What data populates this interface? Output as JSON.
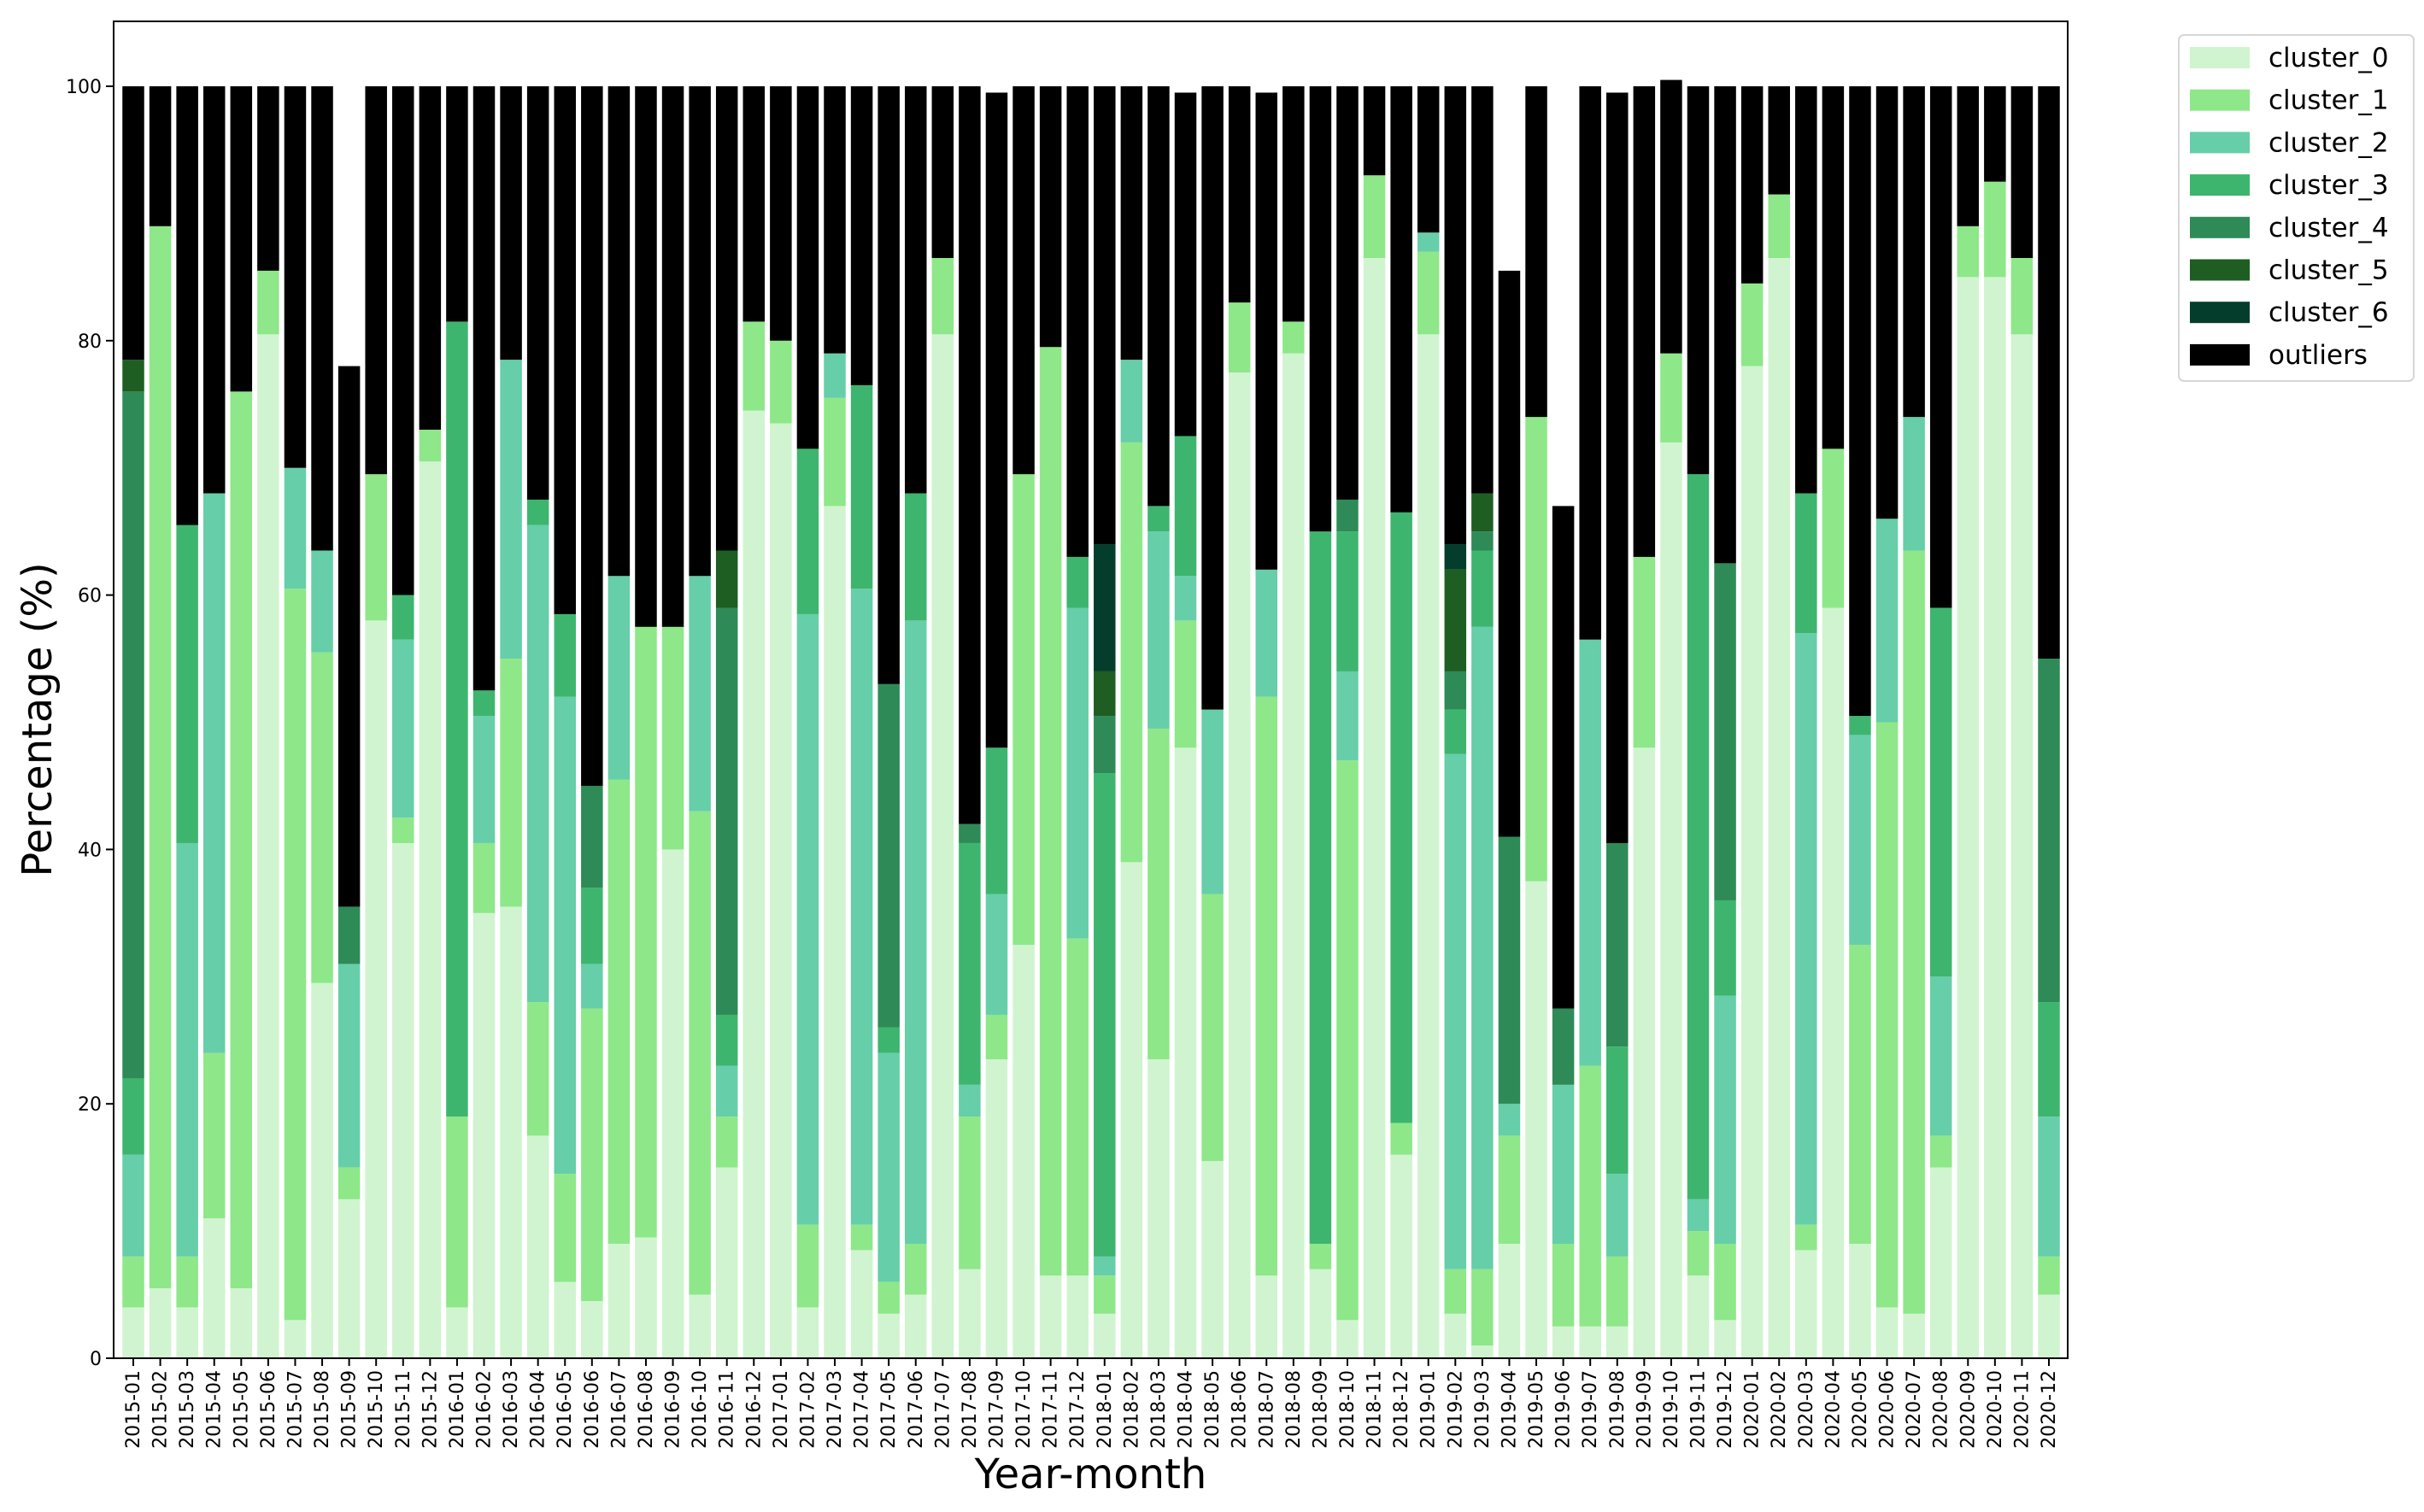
{
  "chart_data": {
    "type": "bar",
    "stacked": true,
    "title": "",
    "xlabel": "Year-month",
    "ylabel": "Percentage (%)",
    "ylim": [
      0,
      100
    ],
    "yticks": [
      0,
      20,
      40,
      60,
      80,
      100
    ],
    "grid": false,
    "legend_position": "outside-top-right",
    "categories": [
      "2015-01",
      "2015-02",
      "2015-03",
      "2015-04",
      "2015-05",
      "2015-06",
      "2015-07",
      "2015-08",
      "2015-09",
      "2015-10",
      "2015-11",
      "2015-12",
      "2016-01",
      "2016-02",
      "2016-03",
      "2016-04",
      "2016-05",
      "2016-06",
      "2016-07",
      "2016-08",
      "2016-09",
      "2016-10",
      "2016-11",
      "2016-12",
      "2017-01",
      "2017-02",
      "2017-03",
      "2017-04",
      "2017-05",
      "2017-06",
      "2017-07",
      "2017-08",
      "2017-09",
      "2017-10",
      "2017-11",
      "2017-12",
      "2018-01",
      "2018-02",
      "2018-03",
      "2018-04",
      "2018-05",
      "2018-06",
      "2018-07",
      "2018-08",
      "2018-09",
      "2018-10",
      "2018-11",
      "2018-12",
      "2019-01",
      "2019-02",
      "2019-03",
      "2019-04",
      "2019-05",
      "2019-06",
      "2019-07",
      "2019-08",
      "2019-09",
      "2019-10",
      "2019-11",
      "2019-12",
      "2020-01",
      "2020-02",
      "2020-03",
      "2020-04",
      "2020-05",
      "2020-06",
      "2020-07",
      "2020-08",
      "2020-09",
      "2020-10",
      "2020-11",
      "2020-12"
    ],
    "series": [
      {
        "name": "cluster_0",
        "color": "#d0f4d0",
        "values": [
          4,
          5.5,
          4,
          11,
          5.5,
          80.5,
          3,
          29.5,
          12.5,
          58,
          40.5,
          70.5,
          4,
          35,
          35.5,
          17.5,
          6,
          4.5,
          9,
          9.5,
          40,
          5,
          15,
          74.5,
          73.5,
          4,
          67,
          8.5,
          3.5,
          5,
          80.5,
          7,
          23.5,
          32.5,
          6.5,
          6.5,
          3.5,
          39,
          23.5,
          48,
          15.5,
          77.5,
          6.5,
          79,
          7,
          3,
          86.5,
          16,
          80.5,
          3.5,
          1,
          9,
          37.5,
          2.5,
          2.5,
          2.5,
          48,
          72,
          6.5,
          3,
          78,
          86.5,
          8.5,
          59,
          9,
          4,
          3.5,
          15,
          85,
          85,
          80.5,
          5
        ]
      },
      {
        "name": "cluster_1",
        "color": "#8ee88a",
        "values": [
          4,
          83.5,
          4,
          13,
          70.5,
          5,
          57.5,
          26,
          2.5,
          11.5,
          2,
          2.5,
          15,
          5.5,
          19.5,
          10.5,
          8.5,
          23,
          36.5,
          48,
          17.5,
          38,
          4,
          7,
          6.5,
          6.5,
          8.5,
          2,
          2.5,
          4,
          6,
          12,
          3.5,
          37,
          73,
          26.5,
          3,
          33,
          26,
          10,
          21,
          5.5,
          45.5,
          2.5,
          2,
          44,
          6.5,
          2.5,
          6.5,
          3.5,
          6,
          8.5,
          36.5,
          6.5,
          20.5,
          5.5,
          15,
          7,
          3.5,
          6,
          6.5,
          5,
          2,
          12.5,
          23.5,
          46,
          60,
          2.5,
          4,
          7.5,
          6,
          3
        ]
      },
      {
        "name": "cluster_2",
        "color": "#66cfaa",
        "values": [
          8,
          0,
          32.5,
          44,
          0,
          0,
          9.5,
          8,
          16,
          0,
          14,
          0,
          0,
          10,
          23.5,
          37.5,
          37.5,
          3.5,
          16,
          0,
          0,
          18.5,
          4,
          0,
          0,
          48,
          3.5,
          50,
          18,
          49,
          0,
          2.5,
          9.5,
          0,
          0,
          26,
          1.5,
          6.5,
          15.5,
          3.5,
          14.5,
          0,
          10,
          0,
          0,
          7,
          0,
          0,
          1.5,
          40.5,
          50.5,
          2.5,
          0,
          12.5,
          33.5,
          6.5,
          0,
          0,
          2.5,
          19.5,
          0,
          0,
          46.5,
          0,
          16.5,
          16,
          10.5,
          12.5,
          0,
          0,
          0,
          11
        ]
      },
      {
        "name": "cluster_3",
        "color": "#3db56f",
        "values": [
          6,
          0,
          25,
          0,
          0,
          0,
          0,
          0,
          0,
          0,
          3.5,
          0,
          62.5,
          2,
          0,
          2,
          6.5,
          6,
          0,
          0,
          0,
          0,
          4,
          0,
          0,
          13,
          0,
          16,
          2,
          10,
          0,
          19,
          11.5,
          0,
          0,
          4,
          38,
          0,
          2,
          11,
          0,
          0,
          0,
          0,
          56,
          11,
          0,
          48,
          0,
          3.5,
          6,
          0,
          0,
          0,
          0,
          10,
          0,
          0,
          57,
          7.5,
          0,
          0,
          11,
          0,
          1.5,
          0,
          0,
          29,
          0,
          0,
          0,
          9
        ]
      },
      {
        "name": "cluster_4",
        "color": "#2e8b57",
        "values": [
          54,
          0,
          0,
          0,
          0,
          0,
          0,
          0,
          4.5,
          0,
          0,
          0,
          0,
          0,
          0,
          0,
          0,
          8,
          0,
          0,
          0,
          0,
          32,
          0,
          0,
          0,
          0,
          0,
          27,
          0,
          0,
          1.5,
          0,
          0,
          0,
          0,
          4.5,
          0,
          0,
          0,
          0,
          0,
          0,
          0,
          0,
          2.5,
          0,
          0,
          0,
          3,
          1.5,
          21,
          0,
          6,
          0,
          16,
          0,
          0,
          0,
          26.5,
          0,
          0,
          0,
          0,
          0,
          0,
          0,
          0,
          0,
          0,
          0,
          27
        ]
      },
      {
        "name": "cluster_5",
        "color": "#1f5e22",
        "values": [
          2.5,
          0,
          0,
          0,
          0,
          0,
          0,
          0,
          0,
          0,
          0,
          0,
          0,
          0,
          0,
          0,
          0,
          0,
          0,
          0,
          0,
          0,
          4.5,
          0,
          0,
          0,
          0,
          0,
          0,
          0,
          0,
          0,
          0,
          0,
          0,
          0,
          3.5,
          0,
          0,
          0,
          0,
          0,
          0,
          0,
          0,
          0,
          0,
          0,
          0,
          8,
          3,
          0,
          0,
          0,
          0,
          0,
          0,
          0,
          0,
          0,
          0,
          0,
          0,
          0,
          0,
          0,
          0,
          0,
          0,
          0,
          0,
          0
        ]
      },
      {
        "name": "cluster_6",
        "color": "#043d2b",
        "values": [
          0,
          0,
          0,
          0,
          0,
          0,
          0,
          0,
          0,
          0,
          0,
          0,
          0,
          0,
          0,
          0,
          0,
          0,
          0,
          0,
          0,
          0,
          0,
          0,
          0,
          0,
          0,
          0,
          0,
          0,
          0,
          0,
          0,
          0,
          0,
          0,
          10,
          0,
          0,
          0,
          0,
          0,
          0,
          0,
          0,
          0,
          0,
          0,
          0,
          2,
          0,
          0,
          0,
          0,
          0,
          0,
          0,
          0,
          0,
          0,
          0,
          0,
          0,
          0,
          0,
          0,
          0,
          0,
          0,
          0,
          0,
          0
        ]
      },
      {
        "name": "outliers",
        "color": "#000000",
        "values": [
          21.5,
          11,
          34.5,
          32,
          24,
          14.5,
          30,
          36.5,
          42.5,
          30.5,
          40,
          27,
          18.5,
          47.5,
          21.5,
          32.5,
          41.5,
          55,
          38.5,
          42.5,
          42.5,
          38.5,
          36.5,
          18.5,
          20,
          28.5,
          21,
          23.5,
          47,
          32,
          13.5,
          58,
          51.5,
          30.5,
          20.5,
          37,
          36,
          21.5,
          33,
          27,
          49,
          17,
          37.5,
          18.5,
          35,
          32.5,
          7,
          33.5,
          11.5,
          36,
          32,
          44.5,
          26,
          39.5,
          43.5,
          59,
          37,
          21.5,
          30.5,
          37.5,
          15.5,
          8.5,
          32,
          28.5,
          49.5,
          34,
          26,
          41,
          11,
          7.5,
          13.5,
          45
        ]
      }
    ]
  }
}
